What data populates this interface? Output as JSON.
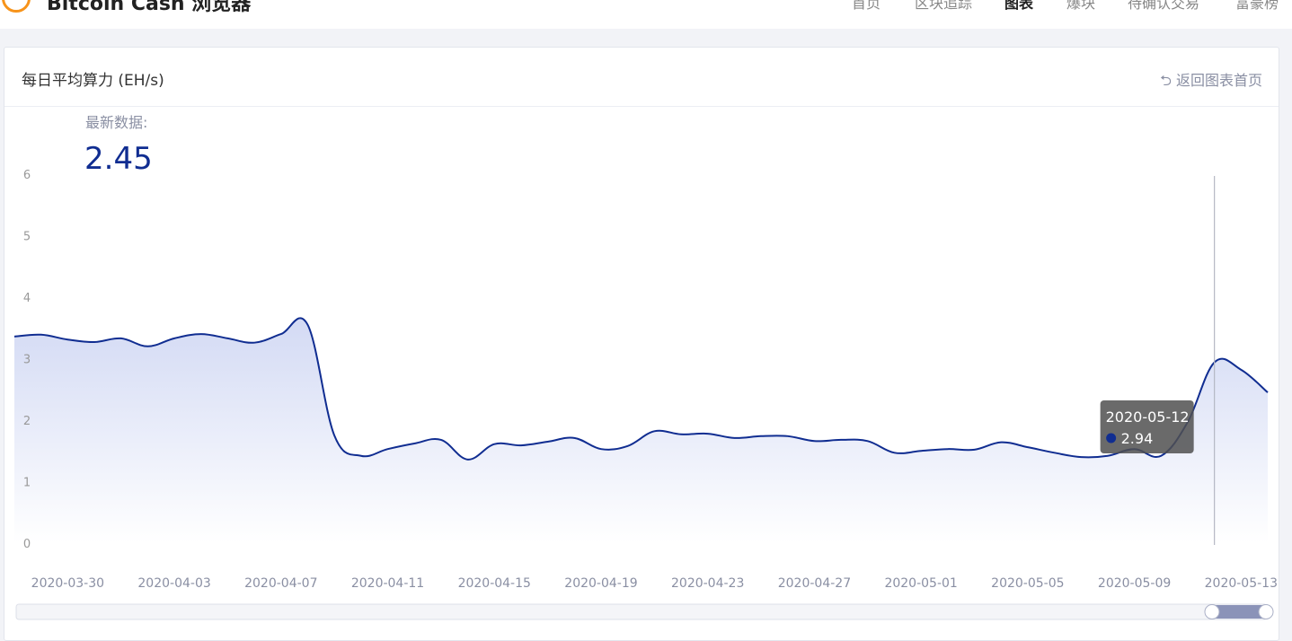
{
  "header": {
    "title": "Bitcoin Cash 浏览器",
    "nav": [
      "首页",
      "区块追踪",
      "图表",
      "爆块",
      "待确认交易",
      "富豪榜"
    ]
  },
  "card": {
    "title": "每日平均算力 (EH/s)",
    "back_link": "返回图表首页",
    "latest_label": "最新数据:"
  },
  "chart_data": {
    "type": "line",
    "categories": [
      "2020-03-28",
      "2020-03-29",
      "2020-03-30",
      "2020-03-31",
      "2020-04-01",
      "2020-04-02",
      "2020-04-03",
      "2020-04-04",
      "2020-04-05",
      "2020-04-06",
      "2020-04-07",
      "2020-04-08",
      "2020-04-09",
      "2020-04-10",
      "2020-04-11",
      "2020-04-12",
      "2020-04-13",
      "2020-04-14",
      "2020-04-15",
      "2020-04-16",
      "2020-04-17",
      "2020-04-18",
      "2020-04-19",
      "2020-04-20",
      "2020-04-21",
      "2020-04-22",
      "2020-04-23",
      "2020-04-24",
      "2020-04-25",
      "2020-04-26",
      "2020-04-27",
      "2020-04-28",
      "2020-04-29",
      "2020-04-30",
      "2020-05-01",
      "2020-05-02",
      "2020-05-03",
      "2020-05-04",
      "2020-05-05",
      "2020-05-06",
      "2020-05-07",
      "2020-05-08",
      "2020-05-09",
      "2020-05-10",
      "2020-05-11",
      "2020-05-12",
      "2020-05-13",
      "2020-05-14"
    ],
    "values": [
      3.36,
      3.39,
      3.31,
      3.27,
      3.33,
      3.2,
      3.33,
      3.4,
      3.33,
      3.26,
      3.4,
      3.55,
      1.75,
      1.42,
      1.53,
      1.62,
      1.68,
      1.36,
      1.61,
      1.59,
      1.65,
      1.71,
      1.53,
      1.58,
      1.82,
      1.77,
      1.78,
      1.71,
      1.74,
      1.74,
      1.66,
      1.68,
      1.66,
      1.47,
      1.5,
      1.53,
      1.52,
      1.64,
      1.56,
      1.47,
      1.4,
      1.42,
      1.53,
      1.42,
      1.97,
      2.94,
      2.82,
      2.45
    ],
    "color": "#102d91",
    "ylim": [
      0,
      6
    ],
    "yticks": [
      0,
      1,
      2,
      3,
      4,
      5,
      6
    ],
    "tooltip": {
      "category": "2020-05-12",
      "value": 2.94
    }
  }
}
